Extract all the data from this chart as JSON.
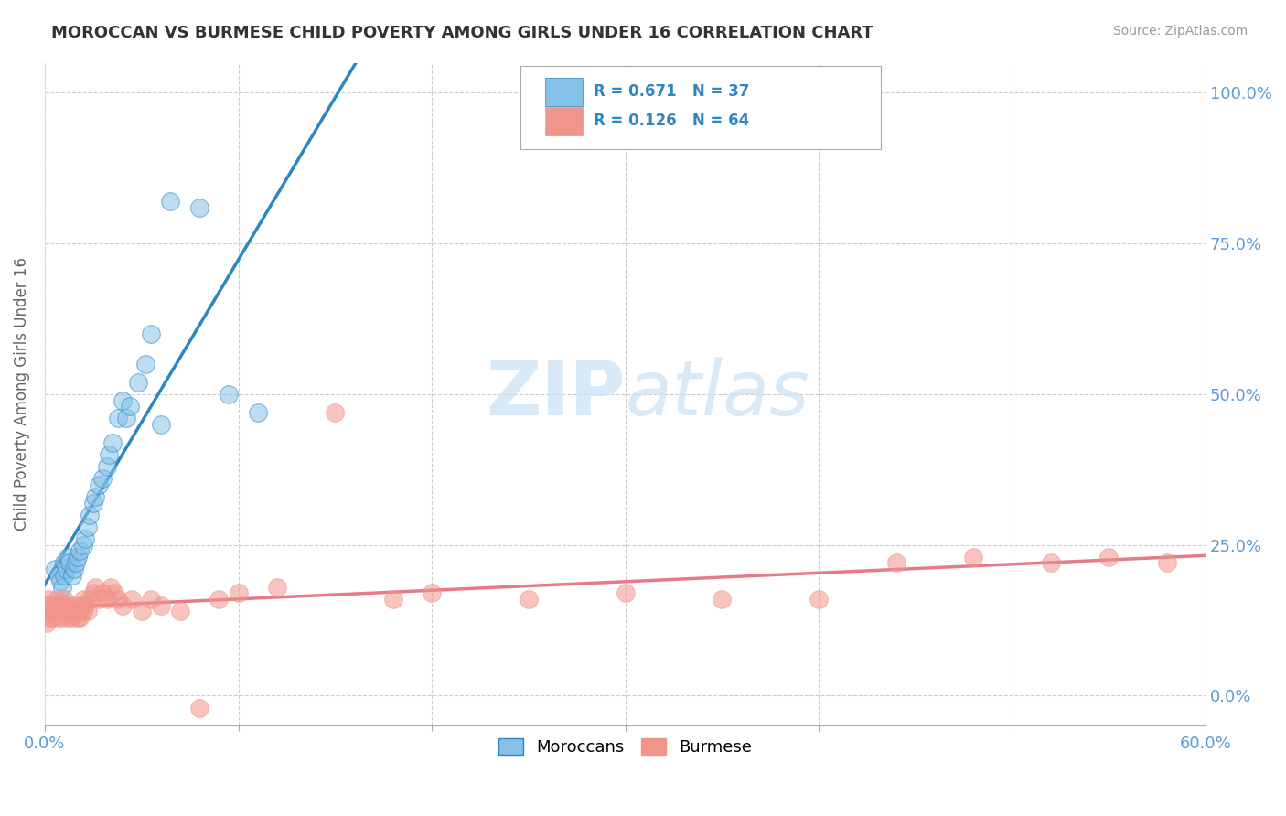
{
  "title": "MOROCCAN VS BURMESE CHILD POVERTY AMONG GIRLS UNDER 16 CORRELATION CHART",
  "source": "Source: ZipAtlas.com",
  "ylabel": "Child Poverty Among Girls Under 16",
  "xlim": [
    0.0,
    0.6
  ],
  "ylim": [
    -0.05,
    1.05
  ],
  "xticks": [
    0.0,
    0.1,
    0.2,
    0.3,
    0.4,
    0.5,
    0.6
  ],
  "xticklabels_show": [
    "0.0%",
    "",
    "",
    "",
    "",
    "",
    "60.0%"
  ],
  "yticks": [
    0.0,
    0.25,
    0.5,
    0.75,
    1.0
  ],
  "yticklabels_left": [
    "",
    "",
    "",
    "",
    ""
  ],
  "yticklabels_right": [
    "0.0%",
    "25.0%",
    "50.0%",
    "75.0%",
    "100.0%"
  ],
  "moroccan_R": 0.671,
  "moroccan_N": 37,
  "burmese_R": 0.126,
  "burmese_N": 64,
  "moroccan_color": "#85C1E9",
  "burmese_color": "#F1948A",
  "moroccan_line_color": "#2E86C1",
  "burmese_line_color": "#E77A8A",
  "watermark_zip": "ZIP",
  "watermark_atlas": "atlas",
  "legend_moroccan": "Moroccans",
  "legend_burmese": "Burmese",
  "background_color": "#ffffff",
  "grid_color": "#cccccc",
  "tick_color": "#5B9BD5",
  "moroccan_x": [
    0.005,
    0.007,
    0.008,
    0.009,
    0.01,
    0.01,
    0.011,
    0.012,
    0.013,
    0.014,
    0.015,
    0.016,
    0.017,
    0.018,
    0.02,
    0.021,
    0.022,
    0.023,
    0.025,
    0.026,
    0.028,
    0.03,
    0.032,
    0.033,
    0.035,
    0.038,
    0.04,
    0.042,
    0.044,
    0.048,
    0.052,
    0.055,
    0.06,
    0.065,
    0.08,
    0.095,
    0.11
  ],
  "moroccan_y": [
    0.21,
    0.2,
    0.19,
    0.18,
    0.22,
    0.2,
    0.21,
    0.23,
    0.22,
    0.2,
    0.21,
    0.22,
    0.23,
    0.24,
    0.25,
    0.26,
    0.28,
    0.3,
    0.32,
    0.33,
    0.35,
    0.36,
    0.38,
    0.4,
    0.42,
    0.46,
    0.49,
    0.46,
    0.48,
    0.52,
    0.55,
    0.6,
    0.45,
    0.82,
    0.81,
    0.5,
    0.47
  ],
  "burmese_x": [
    0.0,
    0.001,
    0.001,
    0.002,
    0.002,
    0.003,
    0.003,
    0.004,
    0.004,
    0.005,
    0.006,
    0.006,
    0.007,
    0.008,
    0.008,
    0.009,
    0.01,
    0.01,
    0.011,
    0.012,
    0.012,
    0.013,
    0.014,
    0.015,
    0.016,
    0.017,
    0.018,
    0.018,
    0.019,
    0.02,
    0.02,
    0.021,
    0.022,
    0.023,
    0.025,
    0.026,
    0.028,
    0.03,
    0.032,
    0.034,
    0.036,
    0.038,
    0.04,
    0.045,
    0.05,
    0.055,
    0.06,
    0.07,
    0.08,
    0.09,
    0.1,
    0.12,
    0.15,
    0.18,
    0.2,
    0.25,
    0.3,
    0.35,
    0.4,
    0.44,
    0.48,
    0.52,
    0.55,
    0.58
  ],
  "burmese_y": [
    0.14,
    0.15,
    0.12,
    0.13,
    0.16,
    0.14,
    0.15,
    0.13,
    0.14,
    0.15,
    0.14,
    0.16,
    0.13,
    0.15,
    0.14,
    0.13,
    0.15,
    0.16,
    0.14,
    0.15,
    0.13,
    0.14,
    0.13,
    0.15,
    0.14,
    0.13,
    0.14,
    0.13,
    0.15,
    0.14,
    0.16,
    0.15,
    0.14,
    0.16,
    0.17,
    0.18,
    0.16,
    0.17,
    0.16,
    0.18,
    0.17,
    0.16,
    0.15,
    0.16,
    0.14,
    0.16,
    0.15,
    0.14,
    -0.02,
    0.16,
    0.17,
    0.18,
    0.47,
    0.16,
    0.17,
    0.16,
    0.17,
    0.16,
    0.16,
    0.22,
    0.23,
    0.22,
    0.23,
    0.22
  ]
}
